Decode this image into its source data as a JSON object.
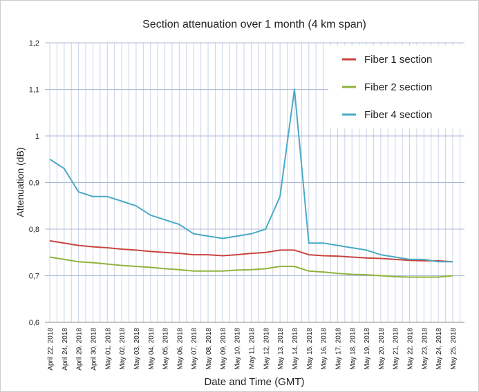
{
  "chart_data": {
    "type": "line",
    "title": "Section attenuation over 1 month (4 km span)",
    "x_label": "Date and Time (GMT)",
    "y_label": "Attenuation (dB)",
    "categories": [
      "April 22, 2018",
      "April 24, 2018",
      "April 29, 2018",
      "April 30, 2018",
      "May 01, 2018",
      "May 02, 2018",
      "May 03, 2018",
      "May 04, 2018",
      "May 05, 2018",
      "May 06, 2018",
      "May 07, 2018",
      "May 08, 2018",
      "May 09, 2018",
      "May 10, 2018",
      "May 11, 2018",
      "May 12, 2018",
      "May 13, 2018",
      "May 14, 2018",
      "May 15, 2018",
      "May 16, 2018",
      "May 17, 2018",
      "May 18, 2018",
      "May 19, 2018",
      "May 20, 2018",
      "May 21, 2018",
      "May 22, 2018",
      "May 23, 2018",
      "May 24, 2018",
      "May 25, 2018"
    ],
    "series": [
      {
        "name": "Fiber 1 section",
        "color": "#c9443d",
        "values": [
          0.775,
          0.77,
          0.765,
          0.762,
          0.76,
          0.757,
          0.755,
          0.752,
          0.75,
          0.748,
          0.745,
          0.745,
          0.743,
          0.745,
          0.748,
          0.75,
          0.755,
          0.755,
          0.745,
          0.743,
          0.742,
          0.74,
          0.738,
          0.737,
          0.735,
          0.733,
          0.732,
          0.732,
          0.73
        ]
      },
      {
        "name": "Fiber 2 section",
        "color": "#8fb33c",
        "values": [
          0.74,
          0.735,
          0.73,
          0.728,
          0.725,
          0.722,
          0.72,
          0.718,
          0.715,
          0.713,
          0.71,
          0.71,
          0.71,
          0.712,
          0.713,
          0.715,
          0.72,
          0.72,
          0.71,
          0.708,
          0.705,
          0.703,
          0.702,
          0.7,
          0.698,
          0.697,
          0.697,
          0.697,
          0.7
        ]
      },
      {
        "name": "Fiber 4 section",
        "color": "#4aa9c6",
        "values": [
          0.95,
          0.93,
          0.88,
          0.87,
          0.87,
          0.86,
          0.85,
          0.83,
          0.82,
          0.81,
          0.79,
          0.785,
          0.78,
          0.785,
          0.79,
          0.8,
          0.87,
          1.1,
          0.77,
          0.77,
          0.765,
          0.76,
          0.755,
          0.745,
          0.74,
          0.735,
          0.735,
          0.73,
          0.73
        ]
      }
    ],
    "ylim": [
      0.6,
      1.2
    ],
    "yticks": [
      {
        "value": 0.6,
        "label": "0,6"
      },
      {
        "value": 0.7,
        "label": "0,7"
      },
      {
        "value": 0.8,
        "label": "0,8"
      },
      {
        "value": 0.9,
        "label": "0,9"
      },
      1,
      {
        "value": 1.1,
        "label": "1,1"
      },
      {
        "value": 1.2,
        "label": "1,2"
      }
    ],
    "grid": true,
    "legend": "top-right"
  }
}
